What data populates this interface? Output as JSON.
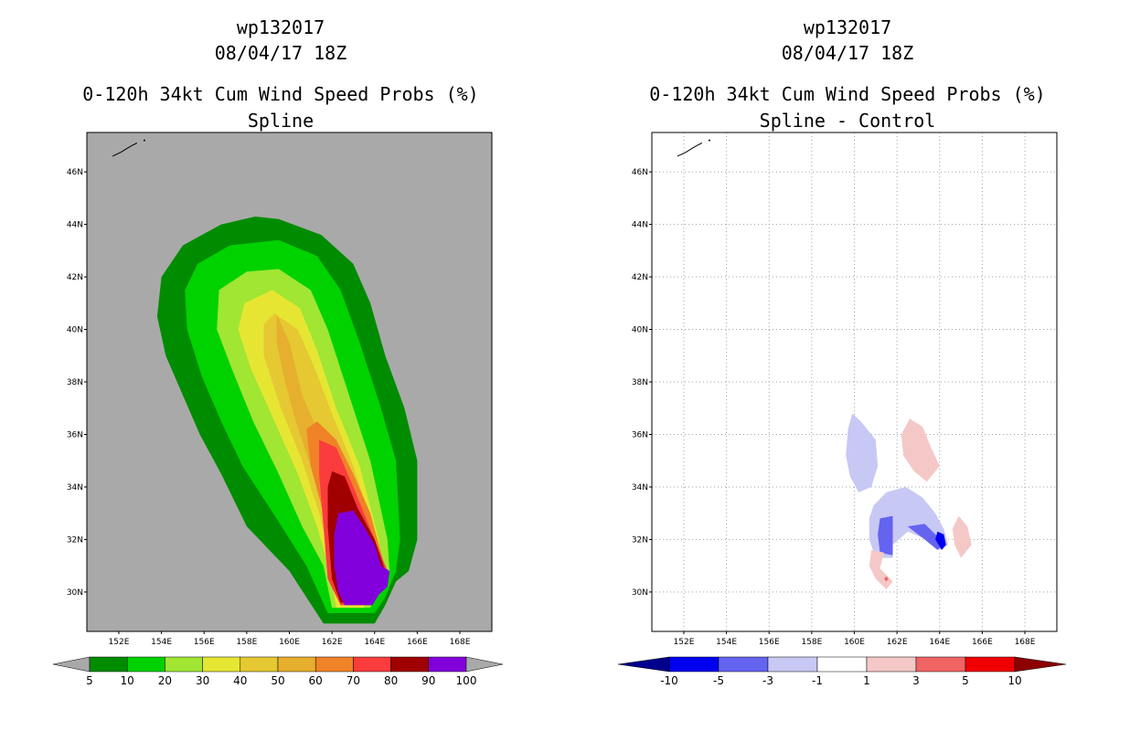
{
  "chart_data": [
    {
      "type": "heatmap",
      "title_lines": [
        "wp132017",
        "08/04/17 18Z",
        "0-120h 34kt Cum Wind Speed Probs (%)",
        "Spline"
      ],
      "storm_id": "wp132017",
      "datetime": "08/04/17 18Z",
      "quantity": "0-120h 34kt Cum Wind Speed Probs (%)",
      "subtitle": "Spline",
      "xlim": [
        150.5,
        169.5
      ],
      "ylim": [
        28.5,
        47.5
      ],
      "x_ticks": [
        "152E",
        "154E",
        "156E",
        "158E",
        "160E",
        "162E",
        "164E",
        "166E",
        "168E"
      ],
      "y_ticks": [
        "30N",
        "32N",
        "34N",
        "36N",
        "38N",
        "40N",
        "42N",
        "44N",
        "46N"
      ],
      "background_color": "#a9a9a9",
      "colorbar": {
        "labels": [
          "5",
          "10",
          "20",
          "30",
          "40",
          "50",
          "60",
          "70",
          "80",
          "90",
          "100"
        ],
        "colors": [
          "#008c00",
          "#00d200",
          "#a0e632",
          "#e6e632",
          "#e6c832",
          "#e6af2d",
          "#f08228",
          "#fa3c3c",
          "#a00000",
          "#8200dc"
        ]
      },
      "contours": [
        {
          "level": "5-10",
          "color": "#008c00",
          "pts": [
            [
              159.5,
              44.2
            ],
            [
              161.5,
              43.6
            ],
            [
              163.0,
              42.5
            ],
            [
              163.8,
              41.0
            ],
            [
              164.5,
              39.0
            ],
            [
              165.4,
              37.0
            ],
            [
              166.0,
              35.0
            ],
            [
              166.0,
              32.0
            ],
            [
              165.6,
              30.8
            ],
            [
              165.0,
              30.4
            ],
            [
              164.5,
              29.5
            ],
            [
              164.0,
              28.8
            ],
            [
              161.6,
              28.8
            ],
            [
              160.0,
              30.8
            ],
            [
              158.0,
              32.5
            ],
            [
              156.8,
              34.5
            ],
            [
              155.8,
              36.0
            ],
            [
              155.0,
              37.5
            ],
            [
              154.2,
              39.0
            ],
            [
              153.8,
              40.5
            ],
            [
              154.0,
              42.0
            ],
            [
              155.0,
              43.2
            ],
            [
              156.8,
              44.0
            ],
            [
              158.4,
              44.3
            ]
          ]
        },
        {
          "level": "10-20",
          "color": "#00d200",
          "pts": [
            [
              159.5,
              43.4
            ],
            [
              161.3,
              42.8
            ],
            [
              162.4,
              41.5
            ],
            [
              163.3,
              39.5
            ],
            [
              164.3,
              37.0
            ],
            [
              165.0,
              35.0
            ],
            [
              165.2,
              32.0
            ],
            [
              165.0,
              30.8
            ],
            [
              164.5,
              29.8
            ],
            [
              164.0,
              29.2
            ],
            [
              161.8,
              29.2
            ],
            [
              160.8,
              31.0
            ],
            [
              159.4,
              32.8
            ],
            [
              157.8,
              34.8
            ],
            [
              156.8,
              36.5
            ],
            [
              155.9,
              38.2
            ],
            [
              155.2,
              40.0
            ],
            [
              155.1,
              41.5
            ],
            [
              155.7,
              42.5
            ],
            [
              157.2,
              43.2
            ]
          ]
        },
        {
          "level": "20-30",
          "color": "#a0e632",
          "pts": [
            [
              159.5,
              42.3
            ],
            [
              161.0,
              41.5
            ],
            [
              161.8,
              40.0
            ],
            [
              162.8,
              37.5
            ],
            [
              163.8,
              35.0
            ],
            [
              164.6,
              32.0
            ],
            [
              164.7,
              30.8
            ],
            [
              164.1,
              30.2
            ],
            [
              163.8,
              29.4
            ],
            [
              162.0,
              29.4
            ],
            [
              161.6,
              31.0
            ],
            [
              160.6,
              32.5
            ],
            [
              159.5,
              34.5
            ],
            [
              158.3,
              36.5
            ],
            [
              157.3,
              38.5
            ],
            [
              156.6,
              40.0
            ],
            [
              156.7,
              41.5
            ],
            [
              158.0,
              42.2
            ]
          ]
        },
        {
          "level": "30-40",
          "color": "#e6e632",
          "pts": [
            [
              159.2,
              41.5
            ],
            [
              160.5,
              40.8
            ],
            [
              161.3,
              39.2
            ],
            [
              162.2,
              37.0
            ],
            [
              163.3,
              34.8
            ],
            [
              164.2,
              32.0
            ],
            [
              164.4,
              30.8
            ],
            [
              163.8,
              30.1
            ],
            [
              163.5,
              29.4
            ],
            [
              162.2,
              29.4
            ],
            [
              161.9,
              30.8
            ],
            [
              161.3,
              32.5
            ],
            [
              160.4,
              34.5
            ],
            [
              159.3,
              36.5
            ],
            [
              158.2,
              38.5
            ],
            [
              157.6,
              40.0
            ],
            [
              157.9,
              41.0
            ]
          ]
        },
        {
          "level": "40-50",
          "color": "#e6c832",
          "pts": [
            [
              159.3,
              40.6
            ],
            [
              160.4,
              40.0
            ],
            [
              161.2,
              38.5
            ],
            [
              162.0,
              36.8
            ],
            [
              163.0,
              34.8
            ],
            [
              163.8,
              32.8
            ],
            [
              164.1,
              31.2
            ],
            [
              163.6,
              30.2
            ],
            [
              162.4,
              29.6
            ],
            [
              162.0,
              31.0
            ],
            [
              161.4,
              33.0
            ],
            [
              160.6,
              35.0
            ],
            [
              159.6,
              37.0
            ],
            [
              158.8,
              39.0
            ],
            [
              158.8,
              40.2
            ]
          ]
        },
        {
          "level": "50-60",
          "color": "#e6af2d",
          "pts": [
            [
              159.4,
              40.6
            ],
            [
              160.0,
              39.5
            ],
            [
              160.6,
              37.5
            ],
            [
              161.4,
              36.0
            ],
            [
              162.4,
              34.8
            ],
            [
              163.6,
              33.0
            ],
            [
              164.1,
              31.2
            ],
            [
              163.6,
              30.0
            ],
            [
              162.5,
              29.5
            ],
            [
              162.2,
              31.0
            ],
            [
              161.6,
              33.0
            ],
            [
              161.0,
              34.8
            ],
            [
              160.3,
              36.5
            ],
            [
              159.8,
              38.0
            ],
            [
              159.4,
              39.5
            ]
          ]
        },
        {
          "level": "60-70",
          "color": "#f08228",
          "pts": [
            [
              161.3,
              36.5
            ],
            [
              162.2,
              35.8
            ],
            [
              163.0,
              34.5
            ],
            [
              163.8,
              33.0
            ],
            [
              164.4,
              31.2
            ],
            [
              163.7,
              30.0
            ],
            [
              162.5,
              29.5
            ],
            [
              162.2,
              31.0
            ],
            [
              161.6,
              33.0
            ],
            [
              161.0,
              34.8
            ],
            [
              160.8,
              36.2
            ]
          ]
        },
        {
          "level": "70-80",
          "color": "#fa3c3c",
          "pts": [
            [
              161.4,
              35.8
            ],
            [
              162.2,
              35.5
            ],
            [
              163.0,
              34.0
            ],
            [
              164.0,
              32.0
            ],
            [
              164.6,
              30.8
            ],
            [
              164.0,
              30.0
            ],
            [
              163.8,
              29.5
            ],
            [
              162.4,
              29.5
            ],
            [
              161.8,
              30.5
            ],
            [
              161.6,
              32.5
            ],
            [
              161.4,
              34.5
            ]
          ]
        },
        {
          "level": "80-90",
          "color": "#a00000",
          "pts": [
            [
              162.0,
              34.6
            ],
            [
              162.6,
              34.4
            ],
            [
              163.2,
              33.2
            ],
            [
              164.0,
              32.0
            ],
            [
              164.5,
              30.8
            ],
            [
              163.9,
              30.0
            ],
            [
              163.6,
              29.6
            ],
            [
              162.4,
              29.6
            ],
            [
              162.0,
              30.5
            ],
            [
              161.8,
              32.5
            ],
            [
              161.8,
              34.0
            ]
          ]
        },
        {
          "level": "90-100",
          "color": "#8200dc",
          "pts": [
            [
              162.3,
              33.0
            ],
            [
              163.0,
              33.1
            ],
            [
              163.5,
              32.5
            ],
            [
              164.0,
              31.8
            ],
            [
              164.3,
              31.0
            ],
            [
              164.7,
              30.8
            ],
            [
              164.6,
              30.2
            ],
            [
              164.2,
              29.9
            ],
            [
              163.9,
              29.5
            ],
            [
              162.6,
              29.5
            ],
            [
              162.3,
              30.0
            ],
            [
              162.1,
              31.0
            ],
            [
              162.1,
              32.2
            ]
          ]
        }
      ]
    },
    {
      "type": "heatmap",
      "title_lines": [
        "wp132017",
        "08/04/17 18Z",
        "0-120h 34kt Cum Wind Speed Probs (%)",
        "Spline - Control"
      ],
      "storm_id": "wp132017",
      "datetime": "08/04/17 18Z",
      "quantity": "0-120h 34kt Cum Wind Speed Probs (%)",
      "subtitle": "Spline - Control",
      "xlim": [
        150.5,
        169.5
      ],
      "ylim": [
        28.5,
        47.5
      ],
      "x_ticks": [
        "152E",
        "154E",
        "156E",
        "158E",
        "160E",
        "162E",
        "164E",
        "166E",
        "168E"
      ],
      "y_ticks": [
        "30N",
        "32N",
        "34N",
        "36N",
        "38N",
        "40N",
        "42N",
        "44N",
        "46N"
      ],
      "grid": true,
      "background_color": "#ffffff",
      "colorbar": {
        "labels": [
          "-10",
          "-5",
          "-3",
          "-1",
          "1",
          "3",
          "5",
          "10"
        ],
        "colors": [
          "#00008c",
          "#0000f0",
          "#6464f0",
          "#c8c8f5",
          "#ffffff",
          "#f5c8c8",
          "#f06464",
          "#f00000",
          "#8c0000"
        ]
      },
      "contours": [
        {
          "level": "-3 to -1",
          "color": "#c8c8f5",
          "pts": [
            [
              159.9,
              36.8
            ],
            [
              160.3,
              36.5
            ],
            [
              161.0,
              35.8
            ],
            [
              161.1,
              34.8
            ],
            [
              160.8,
              34.0
            ],
            [
              160.2,
              33.8
            ],
            [
              159.8,
              34.4
            ],
            [
              159.6,
              35.2
            ],
            [
              159.7,
              36.2
            ]
          ]
        },
        {
          "level": "1 to 3",
          "color": "#f5c8c8",
          "pts": [
            [
              162.6,
              36.6
            ],
            [
              163.2,
              36.3
            ],
            [
              163.6,
              35.5
            ],
            [
              164.0,
              34.8
            ],
            [
              163.4,
              34.2
            ],
            [
              162.8,
              34.6
            ],
            [
              162.3,
              35.2
            ],
            [
              162.2,
              36.0
            ]
          ]
        },
        {
          "level": "-3 to -1",
          "color": "#c8c8f5",
          "pts": [
            [
              160.9,
              33.3
            ],
            [
              161.5,
              33.8
            ],
            [
              162.4,
              34.0
            ],
            [
              163.2,
              33.6
            ],
            [
              163.8,
              33.0
            ],
            [
              164.2,
              32.4
            ],
            [
              164.4,
              31.8
            ],
            [
              164.0,
              31.6
            ],
            [
              163.4,
              32.0
            ],
            [
              162.5,
              32.3
            ],
            [
              161.8,
              31.8
            ],
            [
              161.8,
              31.3
            ],
            [
              161.0,
              31.3
            ],
            [
              160.7,
              32.0
            ],
            [
              160.7,
              32.8
            ]
          ]
        },
        {
          "level": "-5 to -3",
          "color": "#6464f0",
          "pts": [
            [
              161.2,
              32.8
            ],
            [
              161.8,
              32.9
            ],
            [
              161.8,
              32.0
            ],
            [
              161.8,
              31.4
            ],
            [
              161.2,
              31.5
            ],
            [
              161.1,
              32.2
            ]
          ]
        },
        {
          "level": "-5 to -3",
          "color": "#6464f0",
          "pts": [
            [
              162.5,
              32.5
            ],
            [
              163.3,
              32.6
            ],
            [
              163.8,
              32.2
            ],
            [
              164.2,
              31.8
            ],
            [
              163.9,
              31.6
            ],
            [
              163.3,
              32.0
            ]
          ]
        },
        {
          "level": "-10 to -5",
          "color": "#0000f0",
          "pts": [
            [
              163.9,
              32.3
            ],
            [
              164.2,
              32.2
            ],
            [
              164.3,
              31.8
            ],
            [
              164.1,
              31.6
            ],
            [
              163.8,
              32.0
            ]
          ]
        },
        {
          "level": "1 to 3",
          "color": "#f5c8c8",
          "pts": [
            [
              164.9,
              32.9
            ],
            [
              165.3,
              32.5
            ],
            [
              165.5,
              31.8
            ],
            [
              165.0,
              31.3
            ],
            [
              164.7,
              31.8
            ],
            [
              164.6,
              32.4
            ]
          ]
        },
        {
          "level": "1 to 3",
          "color": "#f5c8c8",
          "pts": [
            [
              160.8,
              31.6
            ],
            [
              161.4,
              31.5
            ],
            [
              161.2,
              30.9
            ],
            [
              161.8,
              30.4
            ],
            [
              161.5,
              30.1
            ],
            [
              161.0,
              30.5
            ],
            [
              160.7,
              31.0
            ]
          ]
        },
        {
          "level": "3 to 5",
          "color": "#f06464",
          "pts": [
            [
              161.5,
              30.6
            ],
            [
              161.6,
              30.5
            ],
            [
              161.5,
              30.4
            ],
            [
              161.4,
              30.5
            ]
          ]
        }
      ]
    }
  ]
}
